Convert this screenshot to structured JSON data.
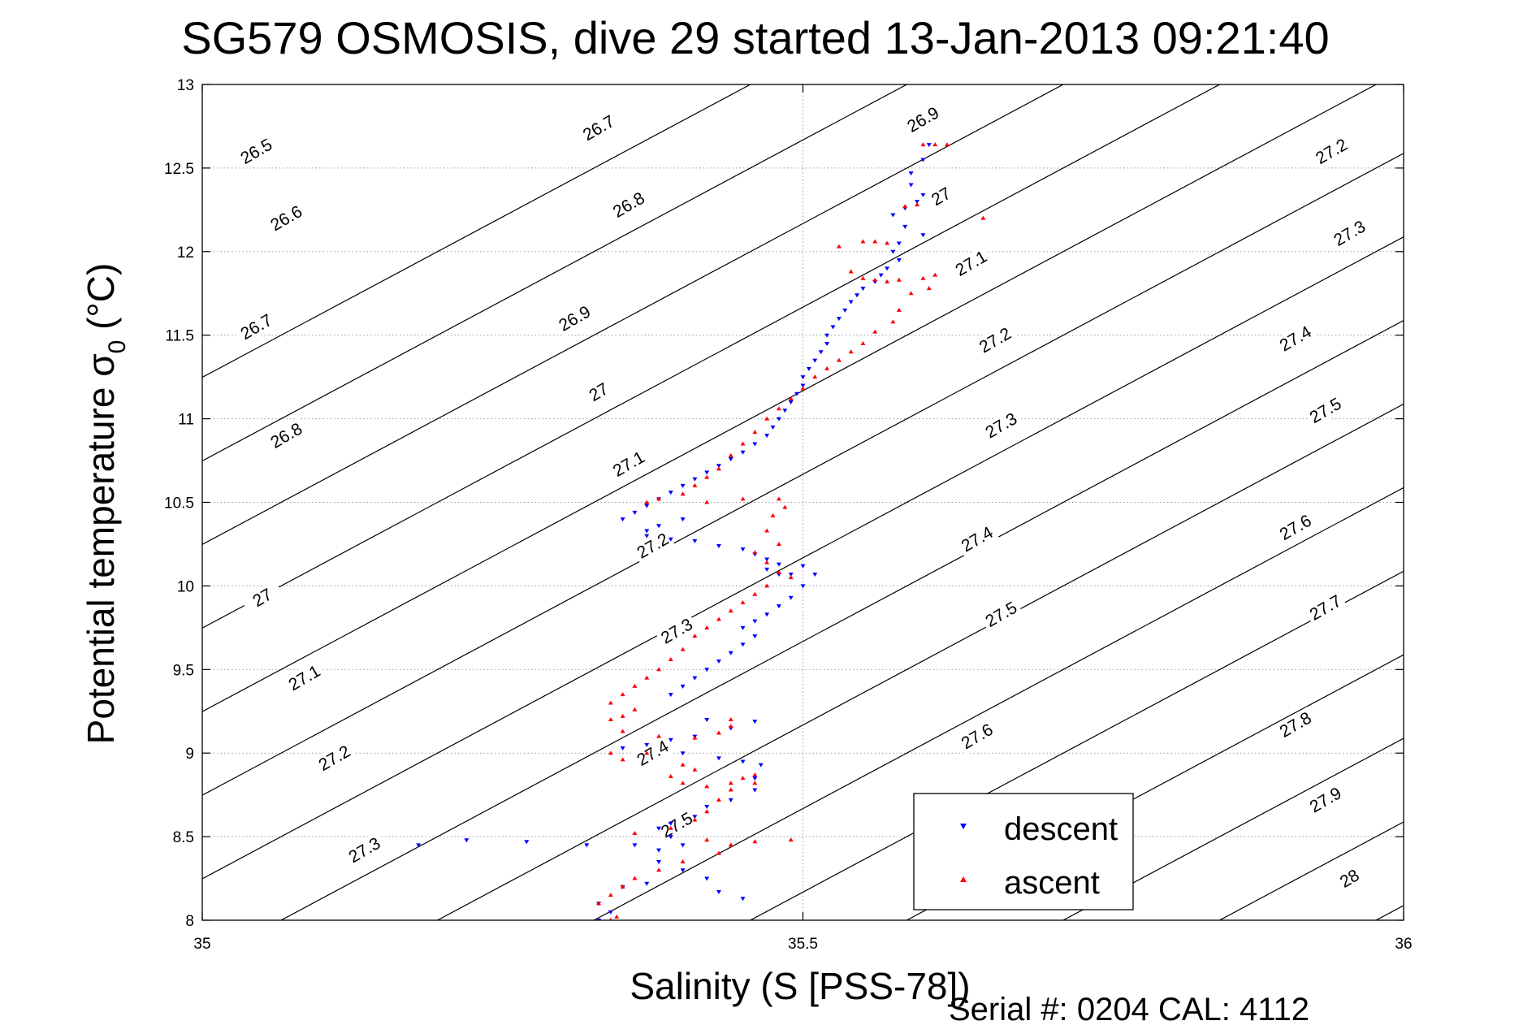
{
  "chart_data": {
    "type": "scatter",
    "title": "SG579 OSMOSIS, dive 29 started 13-Jan-2013 09:21:40",
    "xlabel": "Salinity (S [PSS-78])",
    "ylabel_main": "Potential temperature σ",
    "ylabel_sub": "0",
    "ylabel_unit": " (°C)",
    "xlim": [
      35,
      36
    ],
    "ylim": [
      8,
      13
    ],
    "xticks": [
      35,
      35.5,
      36
    ],
    "xtick_labels": [
      "35",
      "35.5",
      "36"
    ],
    "yticks": [
      8,
      8.5,
      9,
      9.5,
      10,
      10.5,
      11,
      11.5,
      12,
      12.5,
      13
    ],
    "ytick_labels": [
      "8",
      "8.5",
      "9",
      "9.5",
      "10",
      "10.5",
      "11",
      "11.5",
      "12",
      "12.5",
      "13"
    ],
    "grid": true,
    "legend_position": "bottom-right",
    "contour_levels": [
      26.5,
      26.6,
      26.7,
      26.8,
      26.9,
      27,
      27.1,
      27.2,
      27.3,
      27.4,
      27.5,
      27.6,
      27.7,
      27.8,
      27.9,
      28
    ],
    "contour_labels": [
      {
        "text": "26.5",
        "s": 35.045,
        "t": 12.6
      },
      {
        "text": "26.6",
        "s": 35.07,
        "t": 12.2
      },
      {
        "text": "26.7",
        "s": 35.045,
        "t": 11.55
      },
      {
        "text": "26.8",
        "s": 35.07,
        "t": 10.9
      },
      {
        "text": "27",
        "s": 35.05,
        "t": 9.93
      },
      {
        "text": "27.1",
        "s": 35.085,
        "t": 9.45
      },
      {
        "text": "27.2",
        "s": 35.11,
        "t": 8.97
      },
      {
        "text": "27.3",
        "s": 35.135,
        "t": 8.42
      },
      {
        "text": "26.7",
        "s": 35.33,
        "t": 12.74
      },
      {
        "text": "26.8",
        "s": 35.355,
        "t": 12.28
      },
      {
        "text": "26.9",
        "s": 35.31,
        "t": 11.6
      },
      {
        "text": "27",
        "s": 35.33,
        "t": 11.16
      },
      {
        "text": "27.1",
        "s": 35.355,
        "t": 10.73
      },
      {
        "text": "27.2",
        "s": 35.375,
        "t": 10.24
      },
      {
        "text": "27.3",
        "s": 35.395,
        "t": 9.73
      },
      {
        "text": "27.4",
        "s": 35.375,
        "t": 9.0
      },
      {
        "text": "27.5",
        "s": 35.395,
        "t": 8.57
      },
      {
        "text": "26.9",
        "s": 35.6,
        "t": 12.79
      },
      {
        "text": "27",
        "s": 35.615,
        "t": 12.33
      },
      {
        "text": "27.1",
        "s": 35.64,
        "t": 11.93
      },
      {
        "text": "27.2",
        "s": 35.66,
        "t": 11.47
      },
      {
        "text": "27.3",
        "s": 35.665,
        "t": 10.96
      },
      {
        "text": "27.4",
        "s": 35.645,
        "t": 10.28
      },
      {
        "text": "27.5",
        "s": 35.665,
        "t": 9.83
      },
      {
        "text": "27.6",
        "s": 35.645,
        "t": 9.1
      },
      {
        "text": "27.2",
        "s": 35.94,
        "t": 12.6
      },
      {
        "text": "27.3",
        "s": 35.955,
        "t": 12.11
      },
      {
        "text": "27.4",
        "s": 35.91,
        "t": 11.48
      },
      {
        "text": "27.5",
        "s": 35.935,
        "t": 11.05
      },
      {
        "text": "27.6",
        "s": 35.91,
        "t": 10.35
      },
      {
        "text": "27.7",
        "s": 35.935,
        "t": 9.87
      },
      {
        "text": "27.8",
        "s": 35.91,
        "t": 9.17
      },
      {
        "text": "27.9",
        "s": 35.935,
        "t": 8.72
      },
      {
        "text": "28",
        "s": 35.955,
        "t": 8.25
      }
    ],
    "series": [
      {
        "name": "descent",
        "color": "#0000ff",
        "marker": "triangle-down",
        "points": [
          [
            35.605,
            12.64
          ],
          [
            35.6,
            12.55
          ],
          [
            35.59,
            12.47
          ],
          [
            35.59,
            12.4
          ],
          [
            35.6,
            12.34
          ],
          [
            35.595,
            12.3
          ],
          [
            35.585,
            12.26
          ],
          [
            35.575,
            12.22
          ],
          [
            35.585,
            12.15
          ],
          [
            35.6,
            12.1
          ],
          [
            35.58,
            12.05
          ],
          [
            35.575,
            12.0
          ],
          [
            35.58,
            11.95
          ],
          [
            35.57,
            11.9
          ],
          [
            35.565,
            11.86
          ],
          [
            35.56,
            11.82
          ],
          [
            35.55,
            11.78
          ],
          [
            35.545,
            11.74
          ],
          [
            35.54,
            11.7
          ],
          [
            35.535,
            11.65
          ],
          [
            35.53,
            11.6
          ],
          [
            35.525,
            11.55
          ],
          [
            35.52,
            11.5
          ],
          [
            35.52,
            11.45
          ],
          [
            35.515,
            11.4
          ],
          [
            35.51,
            11.35
          ],
          [
            35.505,
            11.3
          ],
          [
            35.5,
            11.25
          ],
          [
            35.5,
            11.2
          ],
          [
            35.495,
            11.15
          ],
          [
            35.49,
            11.1
          ],
          [
            35.485,
            11.05
          ],
          [
            35.48,
            11.0
          ],
          [
            35.475,
            10.95
          ],
          [
            35.47,
            10.9
          ],
          [
            35.46,
            10.85
          ],
          [
            35.45,
            10.8
          ],
          [
            35.44,
            10.76
          ],
          [
            35.43,
            10.72
          ],
          [
            35.42,
            10.68
          ],
          [
            35.41,
            10.64
          ],
          [
            35.4,
            10.6
          ],
          [
            35.39,
            10.56
          ],
          [
            35.38,
            10.52
          ],
          [
            35.37,
            10.48
          ],
          [
            35.36,
            10.44
          ],
          [
            35.35,
            10.4
          ],
          [
            35.4,
            10.4
          ],
          [
            35.38,
            10.36
          ],
          [
            35.37,
            10.33
          ],
          [
            35.37,
            10.3
          ],
          [
            35.39,
            10.28
          ],
          [
            35.41,
            10.27
          ],
          [
            35.43,
            10.24
          ],
          [
            35.45,
            10.22
          ],
          [
            35.46,
            10.19
          ],
          [
            35.47,
            10.16
          ],
          [
            35.48,
            10.13
          ],
          [
            35.47,
            10.1
          ],
          [
            35.48,
            10.07
          ],
          [
            35.49,
            10.07
          ],
          [
            35.5,
            10.12
          ],
          [
            35.51,
            10.07
          ],
          [
            35.5,
            10.0
          ],
          [
            35.49,
            9.93
          ],
          [
            35.48,
            9.88
          ],
          [
            35.47,
            9.83
          ],
          [
            35.46,
            9.79
          ],
          [
            35.45,
            9.75
          ],
          [
            35.46,
            9.7
          ],
          [
            35.45,
            9.65
          ],
          [
            35.44,
            9.6
          ],
          [
            35.43,
            9.55
          ],
          [
            35.42,
            9.5
          ],
          [
            35.41,
            9.45
          ],
          [
            35.4,
            9.4
          ],
          [
            35.39,
            9.35
          ],
          [
            35.42,
            9.2
          ],
          [
            35.46,
            9.19
          ],
          [
            35.44,
            9.15
          ],
          [
            35.41,
            9.1
          ],
          [
            35.39,
            9.08
          ],
          [
            35.37,
            9.05
          ],
          [
            35.35,
            9.03
          ],
          [
            35.4,
            9.0
          ],
          [
            35.43,
            8.97
          ],
          [
            35.45,
            8.95
          ],
          [
            35.465,
            8.93
          ],
          [
            35.46,
            8.85
          ],
          [
            35.46,
            8.78
          ],
          [
            35.44,
            8.72
          ],
          [
            35.42,
            8.68
          ],
          [
            35.41,
            8.62
          ],
          [
            35.39,
            8.58
          ],
          [
            35.38,
            8.55
          ],
          [
            35.39,
            8.5
          ],
          [
            35.4,
            8.45
          ],
          [
            35.38,
            8.42
          ],
          [
            35.36,
            8.45
          ],
          [
            35.32,
            8.45
          ],
          [
            35.27,
            8.47
          ],
          [
            35.22,
            8.48
          ],
          [
            35.18,
            8.45
          ],
          [
            35.38,
            8.35
          ],
          [
            35.4,
            8.3
          ],
          [
            35.42,
            8.25
          ],
          [
            35.37,
            8.22
          ],
          [
            35.35,
            8.2
          ],
          [
            35.43,
            8.17
          ],
          [
            35.45,
            8.13
          ],
          [
            35.33,
            8.1
          ],
          [
            35.34,
            8.05
          ],
          [
            35.33,
            8.0
          ]
        ]
      },
      {
        "name": "ascent",
        "color": "#ff0000",
        "marker": "triangle-up",
        "points": [
          [
            35.62,
            12.64
          ],
          [
            35.61,
            12.64
          ],
          [
            35.6,
            12.64
          ],
          [
            35.595,
            12.28
          ],
          [
            35.585,
            12.27
          ],
          [
            35.65,
            12.2
          ],
          [
            35.55,
            12.06
          ],
          [
            35.56,
            12.06
          ],
          [
            35.57,
            12.05
          ],
          [
            35.53,
            12.03
          ],
          [
            35.54,
            11.88
          ],
          [
            35.55,
            11.84
          ],
          [
            35.56,
            11.83
          ],
          [
            35.57,
            11.82
          ],
          [
            35.58,
            11.83
          ],
          [
            35.6,
            11.84
          ],
          [
            35.61,
            11.86
          ],
          [
            35.605,
            11.78
          ],
          [
            35.59,
            11.75
          ],
          [
            35.58,
            11.65
          ],
          [
            35.575,
            11.58
          ],
          [
            35.56,
            11.52
          ],
          [
            35.55,
            11.45
          ],
          [
            35.54,
            11.4
          ],
          [
            35.53,
            11.35
          ],
          [
            35.52,
            11.3
          ],
          [
            35.51,
            11.25
          ],
          [
            35.5,
            11.18
          ],
          [
            35.49,
            11.12
          ],
          [
            35.48,
            11.06
          ],
          [
            35.47,
            11.0
          ],
          [
            35.46,
            10.92
          ],
          [
            35.45,
            10.85
          ],
          [
            35.44,
            10.78
          ],
          [
            35.43,
            10.7
          ],
          [
            35.42,
            10.65
          ],
          [
            35.41,
            10.6
          ],
          [
            35.4,
            10.55
          ],
          [
            35.38,
            10.52
          ],
          [
            35.37,
            10.5
          ],
          [
            35.42,
            10.5
          ],
          [
            35.45,
            10.52
          ],
          [
            35.48,
            10.52
          ],
          [
            35.485,
            10.47
          ],
          [
            35.475,
            10.42
          ],
          [
            35.47,
            10.33
          ],
          [
            35.48,
            10.25
          ],
          [
            35.46,
            10.2
          ],
          [
            35.47,
            10.14
          ],
          [
            35.48,
            10.08
          ],
          [
            35.49,
            10.05
          ],
          [
            35.47,
            10.0
          ],
          [
            35.46,
            9.95
          ],
          [
            35.45,
            9.9
          ],
          [
            35.44,
            9.85
          ],
          [
            35.43,
            9.8
          ],
          [
            35.42,
            9.75
          ],
          [
            35.41,
            9.7
          ],
          [
            35.4,
            9.62
          ],
          [
            35.39,
            9.56
          ],
          [
            35.38,
            9.5
          ],
          [
            35.37,
            9.45
          ],
          [
            35.36,
            9.4
          ],
          [
            35.35,
            9.35
          ],
          [
            35.34,
            9.3
          ],
          [
            35.36,
            9.26
          ],
          [
            35.35,
            9.22
          ],
          [
            35.34,
            9.2
          ],
          [
            35.35,
            9.13
          ],
          [
            35.38,
            9.1
          ],
          [
            35.41,
            9.09
          ],
          [
            35.43,
            9.12
          ],
          [
            35.44,
            9.16
          ],
          [
            35.44,
            9.2
          ],
          [
            35.37,
            9.0
          ],
          [
            35.34,
            9.0
          ],
          [
            35.35,
            8.96
          ],
          [
            35.4,
            8.93
          ],
          [
            35.41,
            8.9
          ],
          [
            35.39,
            8.86
          ],
          [
            35.4,
            8.82
          ],
          [
            35.42,
            8.8
          ],
          [
            35.44,
            8.82
          ],
          [
            35.45,
            8.85
          ],
          [
            35.46,
            8.87
          ],
          [
            35.46,
            8.82
          ],
          [
            35.44,
            8.78
          ],
          [
            35.43,
            8.72
          ],
          [
            35.42,
            8.65
          ],
          [
            35.41,
            8.6
          ],
          [
            35.39,
            8.55
          ],
          [
            35.36,
            8.52
          ],
          [
            35.42,
            8.48
          ],
          [
            35.46,
            8.47
          ],
          [
            35.49,
            8.48
          ],
          [
            35.44,
            8.45
          ],
          [
            35.43,
            8.4
          ],
          [
            35.4,
            8.35
          ],
          [
            35.38,
            8.3
          ],
          [
            35.36,
            8.25
          ],
          [
            35.35,
            8.2
          ],
          [
            35.34,
            8.15
          ],
          [
            35.33,
            8.1
          ],
          [
            35.345,
            8.02
          ],
          [
            35.34,
            8.0
          ]
        ]
      }
    ],
    "footer": "Serial #: 0204  CAL: 4112"
  }
}
